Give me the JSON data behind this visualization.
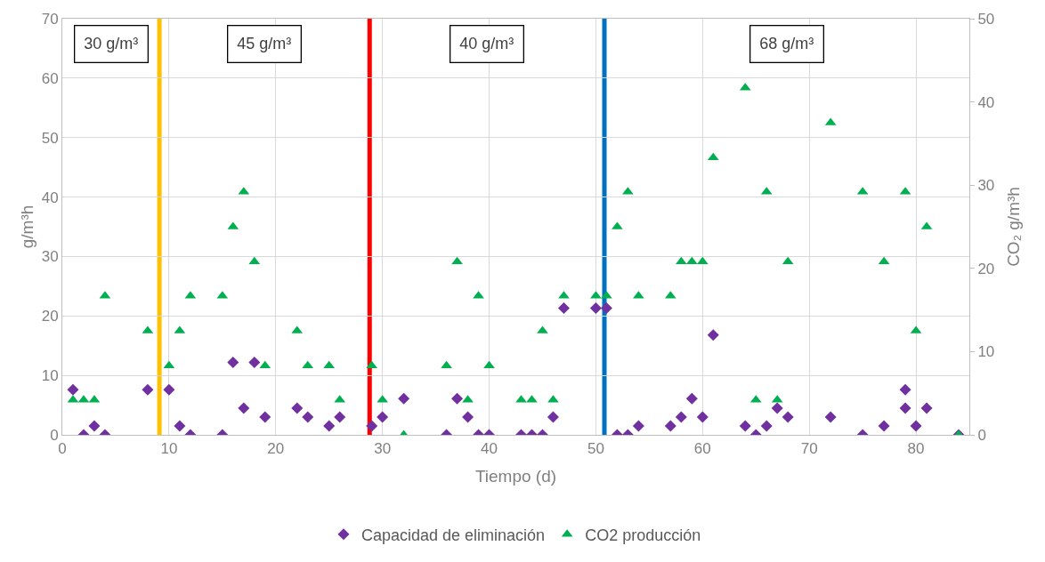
{
  "chart_data": {
    "type": "scatter",
    "xlabel": "Tiempo (d)",
    "ylabel": "g/m³h",
    "y2label": "CO₂ g/m³h",
    "xlim": [
      0,
      85
    ],
    "xticks": [
      0,
      10,
      20,
      30,
      40,
      50,
      60,
      70,
      80
    ],
    "ylim": [
      0,
      70
    ],
    "yticks": [
      0,
      10,
      20,
      30,
      40,
      50,
      60,
      70
    ],
    "y2lim": [
      0,
      50
    ],
    "y2ticks": [
      0,
      10,
      20,
      30,
      40,
      50
    ],
    "grid": true,
    "legend": "bottom",
    "series": [
      {
        "name": "Capacidad de eliminación",
        "color": "#7030a0",
        "marker": "diamond",
        "x": [
          1,
          2,
          3,
          4,
          8,
          10,
          11,
          12,
          15,
          16,
          17,
          18,
          19,
          22,
          23,
          25,
          26,
          29,
          30,
          32,
          36,
          37,
          38,
          39,
          40,
          43,
          44,
          45,
          46,
          47,
          50,
          51,
          52,
          53,
          54,
          57,
          58,
          59,
          60,
          61,
          64,
          65,
          66,
          67,
          68,
          72,
          75,
          77,
          79,
          79,
          80,
          81,
          84
        ],
        "values": [
          7.6,
          0,
          1.5,
          0,
          7.6,
          7.6,
          1.5,
          0,
          0,
          12.2,
          4.5,
          12.2,
          3,
          4.5,
          3,
          1.5,
          3,
          1.5,
          3,
          6.1,
          0,
          6.1,
          3,
          0,
          0,
          0,
          0,
          0,
          3,
          21.3,
          21.3,
          21.3,
          0,
          0,
          1.5,
          1.5,
          3,
          6.1,
          3,
          16.8,
          1.5,
          0,
          1.5,
          4.5,
          3,
          3,
          0,
          1.5,
          7.6,
          4.5,
          1.5,
          4.5,
          0
        ]
      },
      {
        "name": "CO2 producción",
        "color": "#00b050",
        "marker": "triangle",
        "axis": "y2",
        "x": [
          1,
          2,
          3,
          4,
          8,
          10,
          11,
          12,
          15,
          16,
          17,
          18,
          19,
          22,
          23,
          25,
          26,
          29,
          30,
          32,
          36,
          37,
          38,
          39,
          40,
          43,
          44,
          45,
          46,
          47,
          50,
          51,
          52,
          53,
          54,
          57,
          58,
          59,
          60,
          61,
          64,
          65,
          66,
          67,
          68,
          72,
          75,
          77,
          79,
          80,
          81,
          84
        ],
        "values": [
          4.2,
          4.2,
          4.2,
          16.7,
          12.5,
          8.3,
          12.5,
          16.7,
          16.7,
          25,
          29.2,
          20.8,
          8.3,
          12.5,
          8.3,
          8.3,
          4.2,
          8.3,
          4.2,
          0,
          8.3,
          20.8,
          4.2,
          16.7,
          8.3,
          4.2,
          4.2,
          12.5,
          4.2,
          16.7,
          16.7,
          16.7,
          25,
          29.2,
          16.7,
          16.7,
          20.8,
          20.8,
          20.8,
          33.3,
          41.7,
          4.2,
          29.2,
          4.2,
          20.8,
          37.5,
          29.2,
          20.8,
          29.2,
          12.5,
          25,
          0
        ]
      }
    ],
    "ref_lines": [
      {
        "axis": "x",
        "value": 9.1,
        "color": "#ffc000"
      },
      {
        "axis": "x",
        "value": 28.8,
        "color": "#ff0000"
      },
      {
        "axis": "x",
        "value": 50.8,
        "color": "#0070c0"
      }
    ],
    "annotations": [
      "30 g/m³",
      "45 g/m³",
      "40 g/m³",
      "68 g/m³"
    ]
  }
}
